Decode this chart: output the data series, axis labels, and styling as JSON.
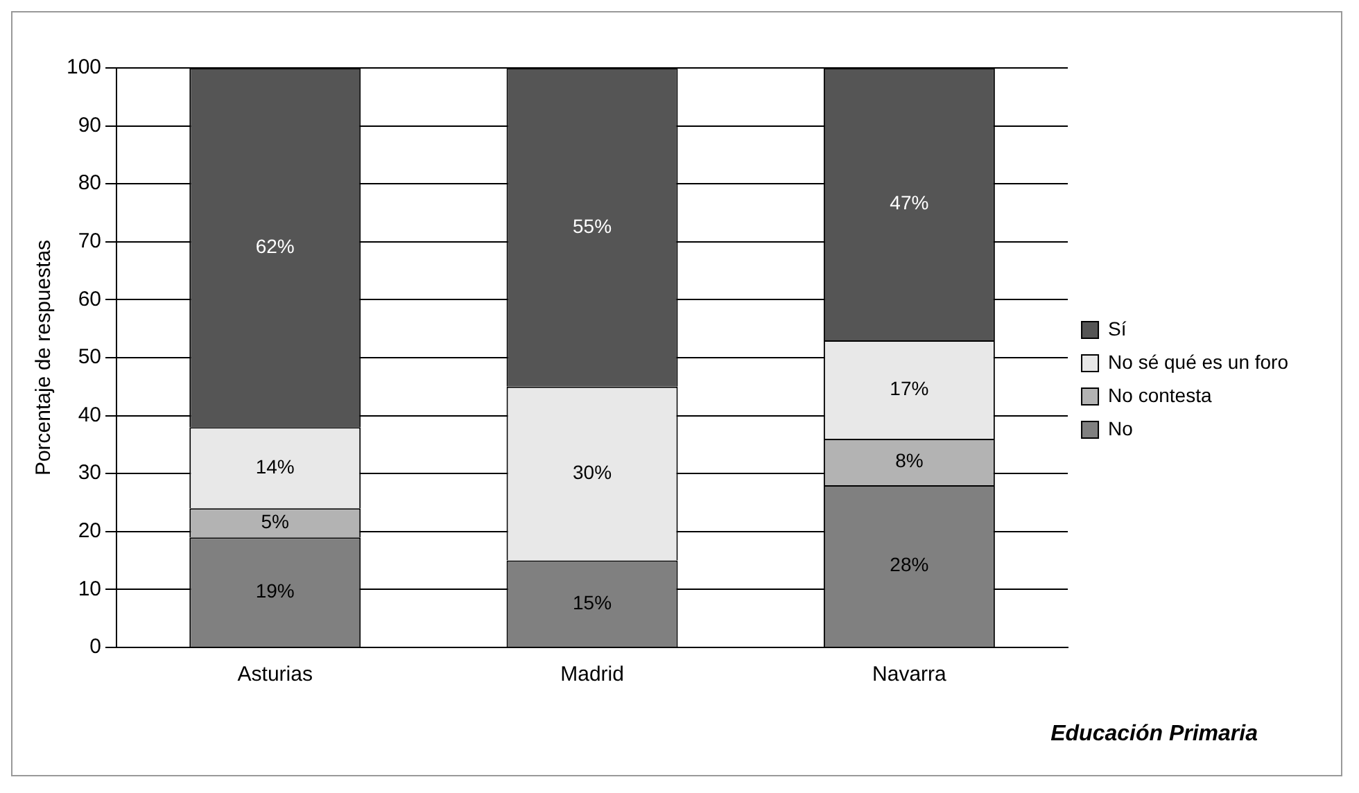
{
  "chart_data": {
    "type": "bar",
    "stacked": true,
    "categories": [
      "Asturias",
      "Madrid",
      "Navarra"
    ],
    "series": [
      {
        "name": "No",
        "color": "#808080",
        "values": [
          19,
          15,
          28
        ],
        "value_labels": [
          "19%",
          "15%",
          "28%"
        ]
      },
      {
        "name": "No contesta",
        "color": "#b3b3b3",
        "values": [
          5,
          0,
          8
        ],
        "value_labels": [
          "5%",
          null,
          "8%"
        ]
      },
      {
        "name": "No sé qué es un foro",
        "color": "#e8e8e8",
        "values": [
          14,
          30,
          17
        ],
        "value_labels": [
          "14%",
          "30%",
          "17%"
        ]
      },
      {
        "name": "Sí",
        "color": "#555555",
        "values": [
          62,
          55,
          47
        ],
        "value_labels": [
          "62%",
          "55%",
          "47%"
        ]
      }
    ],
    "ylabel": "Porcentaje de respuestas",
    "ylim": [
      0,
      100
    ],
    "yticks": [
      0,
      10,
      20,
      30,
      40,
      50,
      60,
      70,
      80,
      90,
      100
    ],
    "grid": "y",
    "legend": "right",
    "annotations": [
      "Educación Primaria"
    ]
  }
}
